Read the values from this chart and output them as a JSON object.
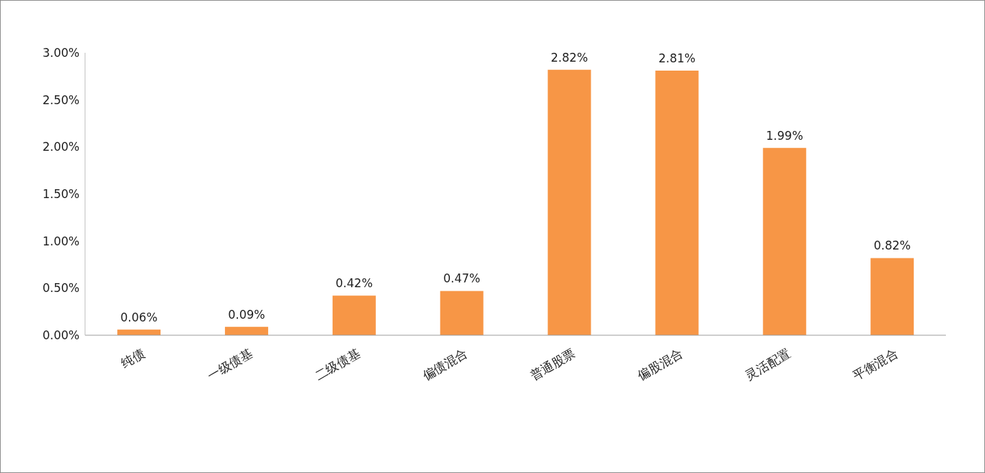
{
  "chart_data": {
    "type": "bar",
    "categories": [
      "纯债",
      "一级债基",
      "二级债基",
      "偏债混合",
      "普通股票",
      "偏股混合",
      "灵活配置",
      "平衡混合"
    ],
    "values": [
      0.06,
      0.09,
      0.42,
      0.47,
      2.82,
      2.81,
      1.99,
      0.82
    ],
    "value_labels": [
      "0.06%",
      "0.09%",
      "0.42%",
      "0.47%",
      "2.82%",
      "2.81%",
      "1.99%",
      "0.82%"
    ],
    "color": "#f79646",
    "ylim": [
      0,
      3
    ],
    "yticks": [
      {
        "value": 0,
        "label": "0.00%"
      },
      {
        "value": 0.5,
        "label": "0.50%"
      },
      {
        "value": 1,
        "label": "1.00%"
      },
      {
        "value": 1.5,
        "label": "1.50%"
      },
      {
        "value": 2,
        "label": "2.00%"
      },
      {
        "value": 2.5,
        "label": "2.50%"
      },
      {
        "value": 3,
        "label": "3.00%"
      }
    ]
  }
}
